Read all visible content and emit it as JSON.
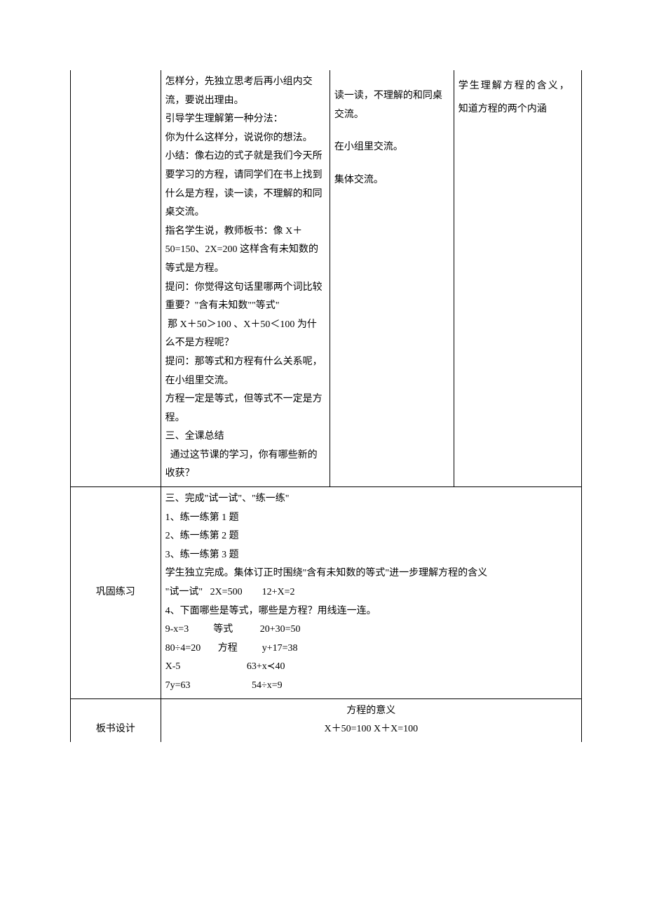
{
  "row1": {
    "col1": "",
    "col2": [
      "怎样分，先独立思考后再小组内交流，要说出理由。",
      "引导学生理解第一种分法：",
      "你为什么这样分，说说你的想法。",
      "小结：像右边的式子就是我们今天所要学习的方程，请同学们在书上找到什么是方程，读一读，不理解的和同桌交流。",
      "指名学生说，教师板书：像 X＋50=150、2X=200 这样含有未知数的等式是方程。",
      "提问：你觉得这句话里哪两个词比较重要？\"含有未知数\"\"等式\"",
      " 那 X＋50＞100 、X＋50＜100 为什么不是方程呢？",
      "提问：那等式和方程有什么关系呢，在小组里交流。",
      "方程一定是等式，但等式不一定是方程。",
      "三、全课总结",
      "  通过这节课的学习，你有哪些新的收获？"
    ],
    "col3": [
      "",
      "读一读，不理解的和同桌交流。",
      "",
      "",
      "在小组里交流。",
      "",
      "集体交流。"
    ],
    "col4": [
      "",
      "",
      "",
      "",
      "",
      "",
      "",
      "学生理解方程的含义，",
      "",
      "知道方程的两个内涵"
    ]
  },
  "row2": {
    "label": "巩固练习",
    "lines": [
      "三、完成\"试一试\"、\"练一练\"",
      "1、练一练第 1 题",
      "2、练一练第 2 题",
      "3、练一练第 3 题",
      "学生独立完成。集体订正时围绕\"含有未知数的等式\"进一步理解方程的含义",
      "\"试一试\"   2X=500        12+X=2",
      "4、下面哪些是等式，哪些是方程？用线连一连。",
      "9-x=3          等式           20+30=50",
      "80÷4=20       方程          y+17=38",
      "X-5                           63+x≺40",
      "7y=63                         54÷x=9"
    ]
  },
  "row3": {
    "label": "板书设计",
    "title": "方程的意义",
    "line2": "X＋50=100      X＋X=100"
  }
}
